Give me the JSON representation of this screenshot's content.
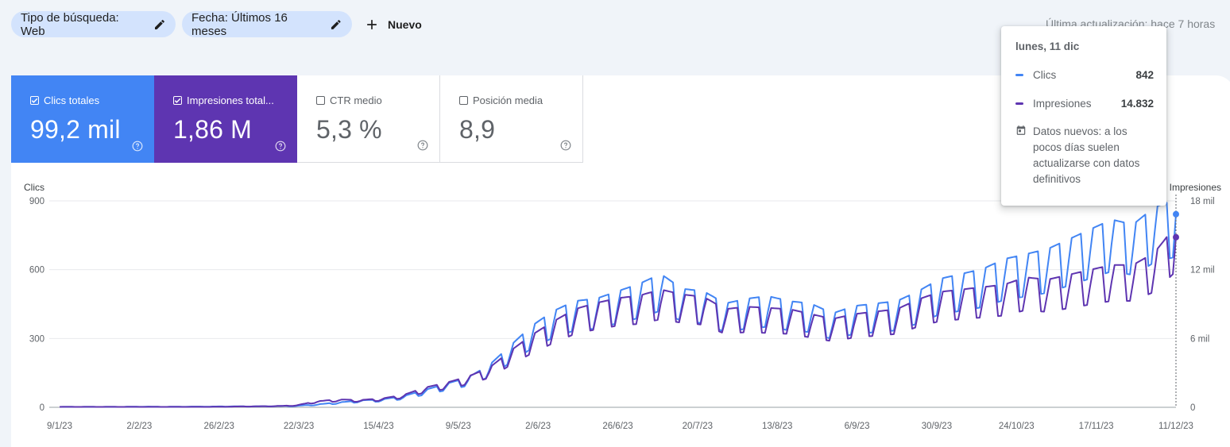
{
  "filters": {
    "search_type": "Tipo de búsqueda: Web",
    "date": "Fecha: Últimos 16 meses",
    "new_label": "Nuevo",
    "last_update": "Última actualización: hace 7 horas"
  },
  "metrics": {
    "clicks": {
      "label": "Clics totales",
      "value": "99,2 mil",
      "checked": true,
      "color": "#4285f4"
    },
    "impressions": {
      "label": "Impresiones total...",
      "value": "1,86 M",
      "checked": true,
      "color": "#5e35b1"
    },
    "ctr": {
      "label": "CTR medio",
      "value": "5,3 %",
      "checked": false
    },
    "position": {
      "label": "Posición media",
      "value": "8,9",
      "checked": false
    }
  },
  "tooltip": {
    "date": "lunes, 11 dic",
    "clicks_label": "Clics",
    "clicks_value": "842",
    "impressions_label": "Impresiones",
    "impressions_value": "14.832",
    "note": "Datos nuevos: a los pocos días suelen actualizarse con datos definitivos"
  },
  "chart_data": {
    "type": "line",
    "left_axis_label": "Clics",
    "right_axis_label": "Impresiones",
    "left_ticks": [
      "0",
      "300",
      "600",
      "900"
    ],
    "left_ylim": [
      0,
      900
    ],
    "right_ticks": [
      "0",
      "6 mil",
      "12 mil",
      "18 mil"
    ],
    "right_ylim": [
      0,
      18000
    ],
    "x_ticks": [
      "9/1/23",
      "2/2/23",
      "26/2/23",
      "22/3/23",
      "15/4/23",
      "9/5/23",
      "2/6/23",
      "26/6/23",
      "20/7/23",
      "13/8/23",
      "6/9/23",
      "30/9/23",
      "24/10/23",
      "17/11/23",
      "11/12/23"
    ],
    "grid": true,
    "series": [
      {
        "name": "Clics",
        "axis": "left",
        "color": "#4285f4",
        "values_by_week": [
          2,
          2,
          2,
          2,
          3,
          2,
          3,
          3,
          4,
          4,
          5,
          6,
          12,
          20,
          28,
          32,
          45,
          70,
          95,
          120,
          170,
          250,
          330,
          390,
          430,
          440,
          470,
          500,
          540,
          480,
          470,
          420,
          440,
          450,
          430,
          420,
          380,
          410,
          420,
          430,
          470,
          520,
          540,
          560,
          600,
          620,
          640,
          680,
          720,
          760,
          740,
          810,
          842
        ]
      },
      {
        "name": "Impresiones",
        "axis": "right",
        "color": "#5e35b1",
        "values_by_week": [
          40,
          40,
          40,
          40,
          40,
          40,
          40,
          40,
          60,
          80,
          100,
          160,
          500,
          640,
          600,
          720,
          1000,
          1600,
          2000,
          2500,
          3200,
          4600,
          5900,
          7000,
          8000,
          8500,
          8900,
          9100,
          9600,
          9200,
          9000,
          8000,
          8200,
          8100,
          8000,
          7600,
          7200,
          7600,
          7800,
          8000,
          8800,
          9400,
          9600,
          9800,
          10000,
          10600,
          10400,
          10800,
          11200,
          11600,
          11600,
          12600,
          14832
        ]
      }
    ]
  }
}
